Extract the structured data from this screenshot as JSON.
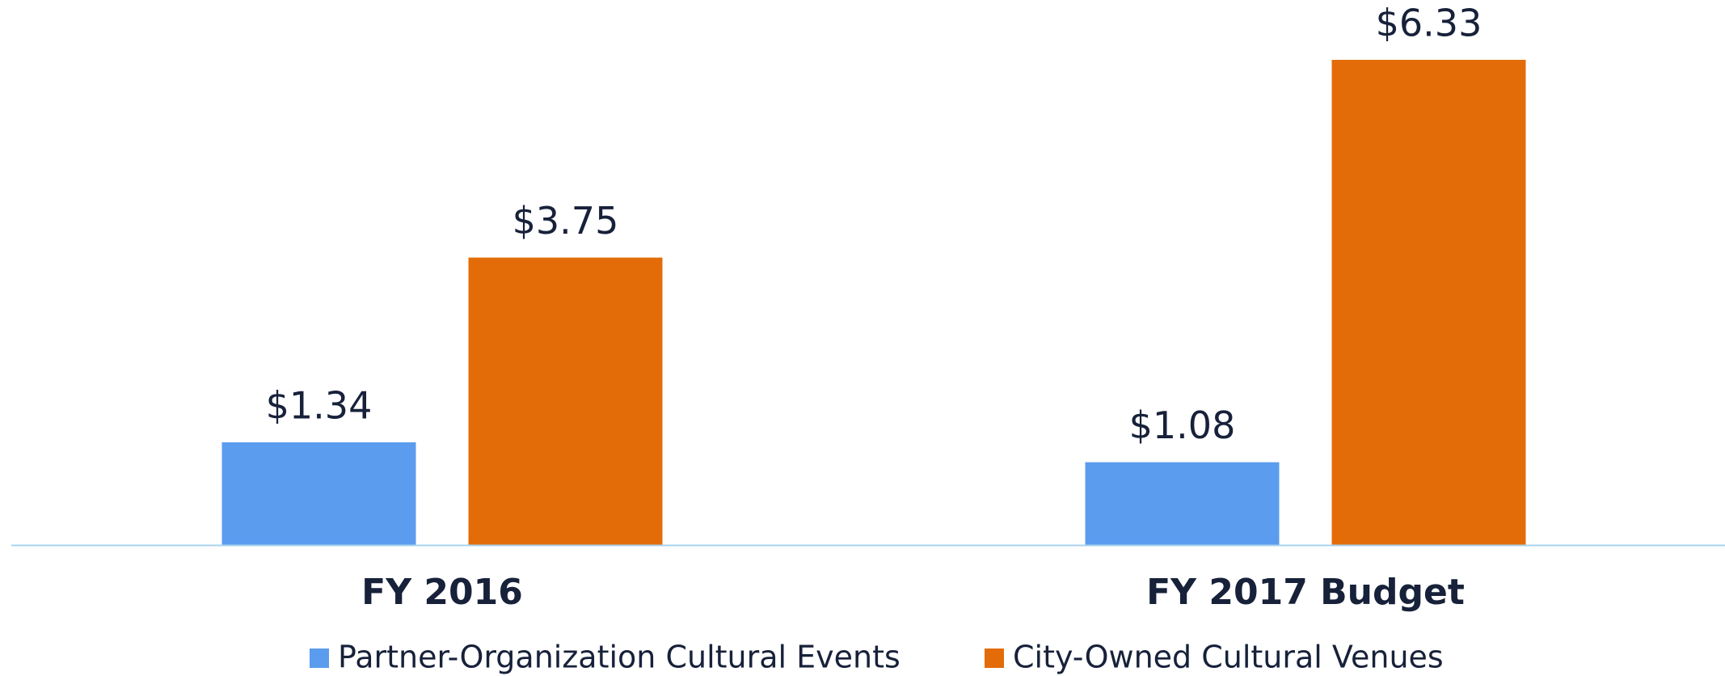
{
  "chart_data": {
    "type": "bar",
    "categories": [
      "FY 2016",
      "FY 2017 Budget"
    ],
    "series": [
      {
        "name": "Partner-Organization Cultural Events",
        "color": "#5b9cee",
        "values": [
          1.34,
          1.08
        ],
        "value_labels": [
          "$1.34",
          "$1.08"
        ]
      },
      {
        "name": "City-Owned Cultural Venues",
        "color": "#e36c09",
        "values": [
          3.75,
          6.33
        ],
        "value_labels": [
          "$3.75",
          "$6.33"
        ]
      }
    ],
    "legend": "bottom"
  }
}
